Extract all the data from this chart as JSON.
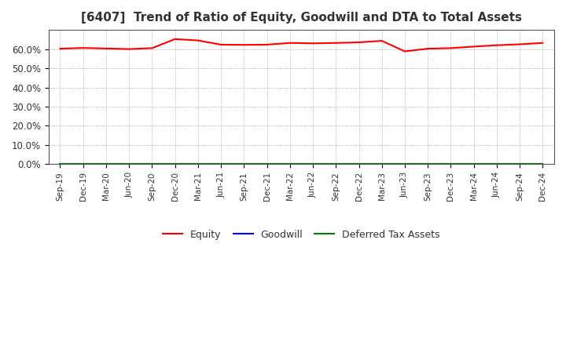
{
  "title": "[6407]  Trend of Ratio of Equity, Goodwill and DTA to Total Assets",
  "x_labels": [
    "Sep-19",
    "Dec-19",
    "Mar-20",
    "Jun-20",
    "Sep-20",
    "Dec-20",
    "Mar-21",
    "Jun-21",
    "Sep-21",
    "Dec-21",
    "Mar-22",
    "Jun-22",
    "Sep-22",
    "Dec-22",
    "Mar-23",
    "Jun-23",
    "Sep-23",
    "Dec-23",
    "Mar-24",
    "Jun-24",
    "Sep-24",
    "Dec-24"
  ],
  "equity": [
    60.2,
    60.6,
    60.3,
    60.0,
    60.5,
    65.2,
    64.5,
    62.3,
    62.2,
    62.3,
    63.2,
    63.0,
    63.2,
    63.5,
    64.3,
    58.8,
    60.2,
    60.5,
    61.3,
    62.0,
    62.5,
    63.2
  ],
  "goodwill": [
    0.0,
    0.0,
    0.0,
    0.0,
    0.0,
    0.0,
    0.0,
    0.0,
    0.0,
    0.0,
    0.0,
    0.0,
    0.0,
    0.0,
    0.0,
    0.0,
    0.0,
    0.0,
    0.0,
    0.0,
    0.0,
    0.0
  ],
  "dta": [
    0.0,
    0.0,
    0.0,
    0.0,
    0.0,
    0.0,
    0.0,
    0.0,
    0.0,
    0.0,
    0.0,
    0.0,
    0.0,
    0.0,
    0.0,
    0.0,
    0.0,
    0.0,
    0.0,
    0.0,
    0.0,
    0.0
  ],
  "equity_color": "#ff0000",
  "goodwill_color": "#0000ff",
  "dta_color": "#008000",
  "ylim": [
    0,
    70
  ],
  "yticks": [
    0,
    10,
    20,
    30,
    40,
    50,
    60
  ],
  "ytick_labels": [
    "0.0%",
    "10.0%",
    "20.0%",
    "30.0%",
    "40.0%",
    "50.0%",
    "60.0%"
  ],
  "background_color": "#ffffff",
  "plot_bg_color": "#ffffff",
  "grid_color": "#999999",
  "title_fontsize": 11,
  "title_color": "#333333",
  "legend_labels": [
    "Equity",
    "Goodwill",
    "Deferred Tax Assets"
  ]
}
